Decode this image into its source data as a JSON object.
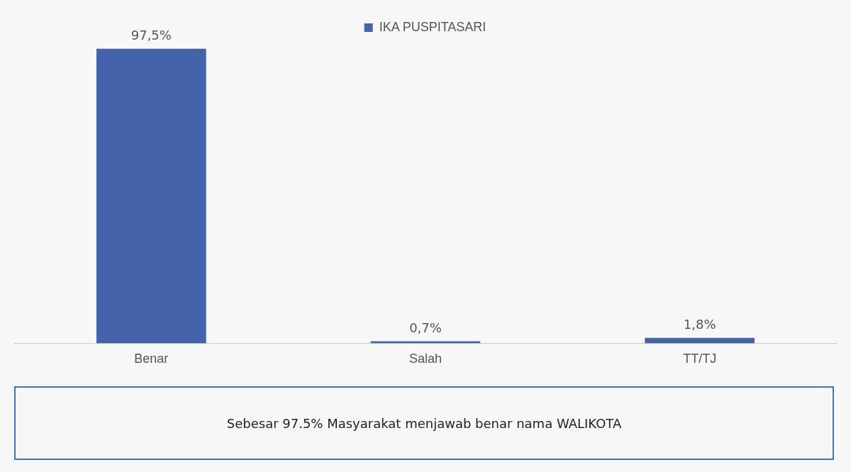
{
  "chart_data": {
    "type": "bar",
    "categories": [
      "Benar",
      "Salah",
      "TT/TJ"
    ],
    "series": [
      {
        "name": "IKA PUSPITASARI",
        "color": "#4463ab",
        "values": [
          97.5,
          0.7,
          1.8
        ],
        "value_labels": [
          "97,5%",
          "0,7%",
          "1,8%"
        ]
      }
    ],
    "legend": "top",
    "grid": false,
    "tick_labels": "x",
    "annotations": [
      "Sebesar 97.5% Masyarakat menjawab benar nama WALIKOTA"
    ]
  }
}
